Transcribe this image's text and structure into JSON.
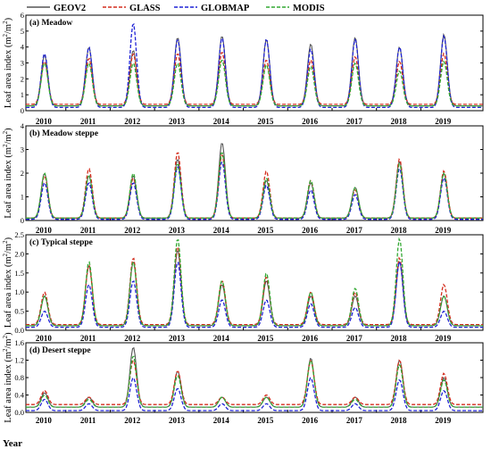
{
  "chart_data": {
    "type": "line",
    "legend": {
      "placement": "top-center",
      "entries": [
        {
          "name": "GEOV2",
          "color": "#555555",
          "dash": "solid"
        },
        {
          "name": "GLASS",
          "color": "#d42d1e",
          "dash": "dashed"
        },
        {
          "name": "GLOBMAP",
          "color": "#1f22d6",
          "dash": "dashed"
        },
        {
          "name": "MODIS",
          "color": "#32a832",
          "dash": "dashed"
        }
      ]
    },
    "xlabel": "Year",
    "ylabel_text": "Leaf area index (m",
    "ylabel_sup1": "2",
    "ylabel_mid": "/m",
    "ylabel_sup2": "2",
    "ylabel_end": ")",
    "year_labels": [
      "2010",
      "2011",
      "2012",
      "2013",
      "2014",
      "2015",
      "2016",
      "2017",
      "2018",
      "2019"
    ],
    "panels": [
      {
        "title": "(a) Meadow",
        "ylim": [
          0,
          6
        ],
        "yticks": [
          "0",
          "1",
          "2",
          "3",
          "4",
          "5",
          "6"
        ],
        "series_peaks": {
          "GEOV2": [
            3.5,
            4.0,
            3.8,
            4.6,
            4.7,
            4.5,
            4.2,
            4.6,
            4.0,
            4.8
          ],
          "GLASS": [
            3.1,
            3.3,
            3.6,
            3.6,
            3.7,
            3.2,
            3.2,
            3.4,
            3.1,
            3.6
          ],
          "GLOBMAP": [
            3.6,
            4.0,
            5.5,
            4.5,
            4.6,
            4.5,
            3.9,
            4.5,
            4.0,
            4.7
          ],
          "MODIS": [
            3.0,
            3.0,
            3.0,
            3.0,
            3.2,
            2.9,
            2.8,
            3.0,
            2.5,
            3.1
          ]
        },
        "base": {
          "GEOV2": 0.3,
          "GLASS": 0.4,
          "GLOBMAP": 0.2,
          "MODIS": 0.3
        }
      },
      {
        "title": "(b) Meadow steppe",
        "ylim": [
          0,
          4
        ],
        "yticks": [
          "0",
          "1",
          "2",
          "3",
          "4"
        ],
        "series_peaks": {
          "GEOV2": [
            2.0,
            1.9,
            1.9,
            2.6,
            3.3,
            1.7,
            1.6,
            1.4,
            2.5,
            2.0
          ],
          "GLASS": [
            1.9,
            2.2,
            1.8,
            2.9,
            2.8,
            2.1,
            1.7,
            1.3,
            2.6,
            2.1
          ],
          "GLOBMAP": [
            1.6,
            1.6,
            1.6,
            2.3,
            2.5,
            1.5,
            1.3,
            1.1,
            2.2,
            1.8
          ],
          "MODIS": [
            2.0,
            1.9,
            2.0,
            2.4,
            2.9,
            1.8,
            1.7,
            1.4,
            2.4,
            2.0
          ]
        },
        "base": {
          "GEOV2": 0.1,
          "GLASS": 0.1,
          "GLOBMAP": 0.05,
          "MODIS": 0.1
        }
      },
      {
        "title": "(c) Typical steppe",
        "ylim": [
          0,
          2.5
        ],
        "yticks": [
          "0.0",
          "0.5",
          "1.0",
          "1.5",
          "2.0",
          "2.5"
        ],
        "series_peaks": {
          "GEOV2": [
            0.9,
            1.7,
            1.8,
            2.1,
            1.2,
            1.3,
            0.9,
            0.9,
            1.8,
            0.9
          ],
          "GLASS": [
            1.0,
            1.7,
            1.9,
            2.2,
            1.3,
            1.4,
            1.0,
            1.0,
            1.9,
            1.2
          ],
          "GLOBMAP": [
            0.5,
            1.2,
            1.3,
            1.8,
            0.8,
            0.8,
            0.7,
            0.6,
            1.8,
            0.5
          ],
          "MODIS": [
            0.9,
            1.8,
            1.8,
            2.4,
            1.3,
            1.5,
            1.0,
            1.1,
            2.4,
            0.9
          ]
        },
        "base": {
          "GEOV2": 0.12,
          "GLASS": 0.15,
          "GLOBMAP": 0.08,
          "MODIS": 0.12
        }
      },
      {
        "title": "(d) Desert steppe",
        "ylim": [
          0,
          1.6
        ],
        "yticks": [
          "0.0",
          "0.4",
          "0.8",
          "1.2",
          "1.6"
        ],
        "series_peaks": {
          "GEOV2": [
            0.45,
            0.35,
            1.5,
            0.95,
            0.35,
            0.35,
            1.25,
            0.35,
            1.2,
            0.8
          ],
          "GLASS": [
            0.5,
            0.35,
            1.2,
            0.95,
            0.35,
            0.4,
            1.2,
            0.35,
            1.2,
            0.9
          ],
          "GLOBMAP": [
            0.3,
            0.2,
            0.8,
            0.55,
            0.2,
            0.2,
            0.8,
            0.2,
            0.75,
            0.5
          ],
          "MODIS": [
            0.4,
            0.3,
            1.3,
            0.85,
            0.35,
            0.35,
            1.2,
            0.3,
            1.1,
            0.75
          ]
        },
        "base": {
          "GEOV2": 0.12,
          "GLASS": 0.18,
          "GLOBMAP": 0.04,
          "MODIS": 0.12
        }
      }
    ]
  }
}
